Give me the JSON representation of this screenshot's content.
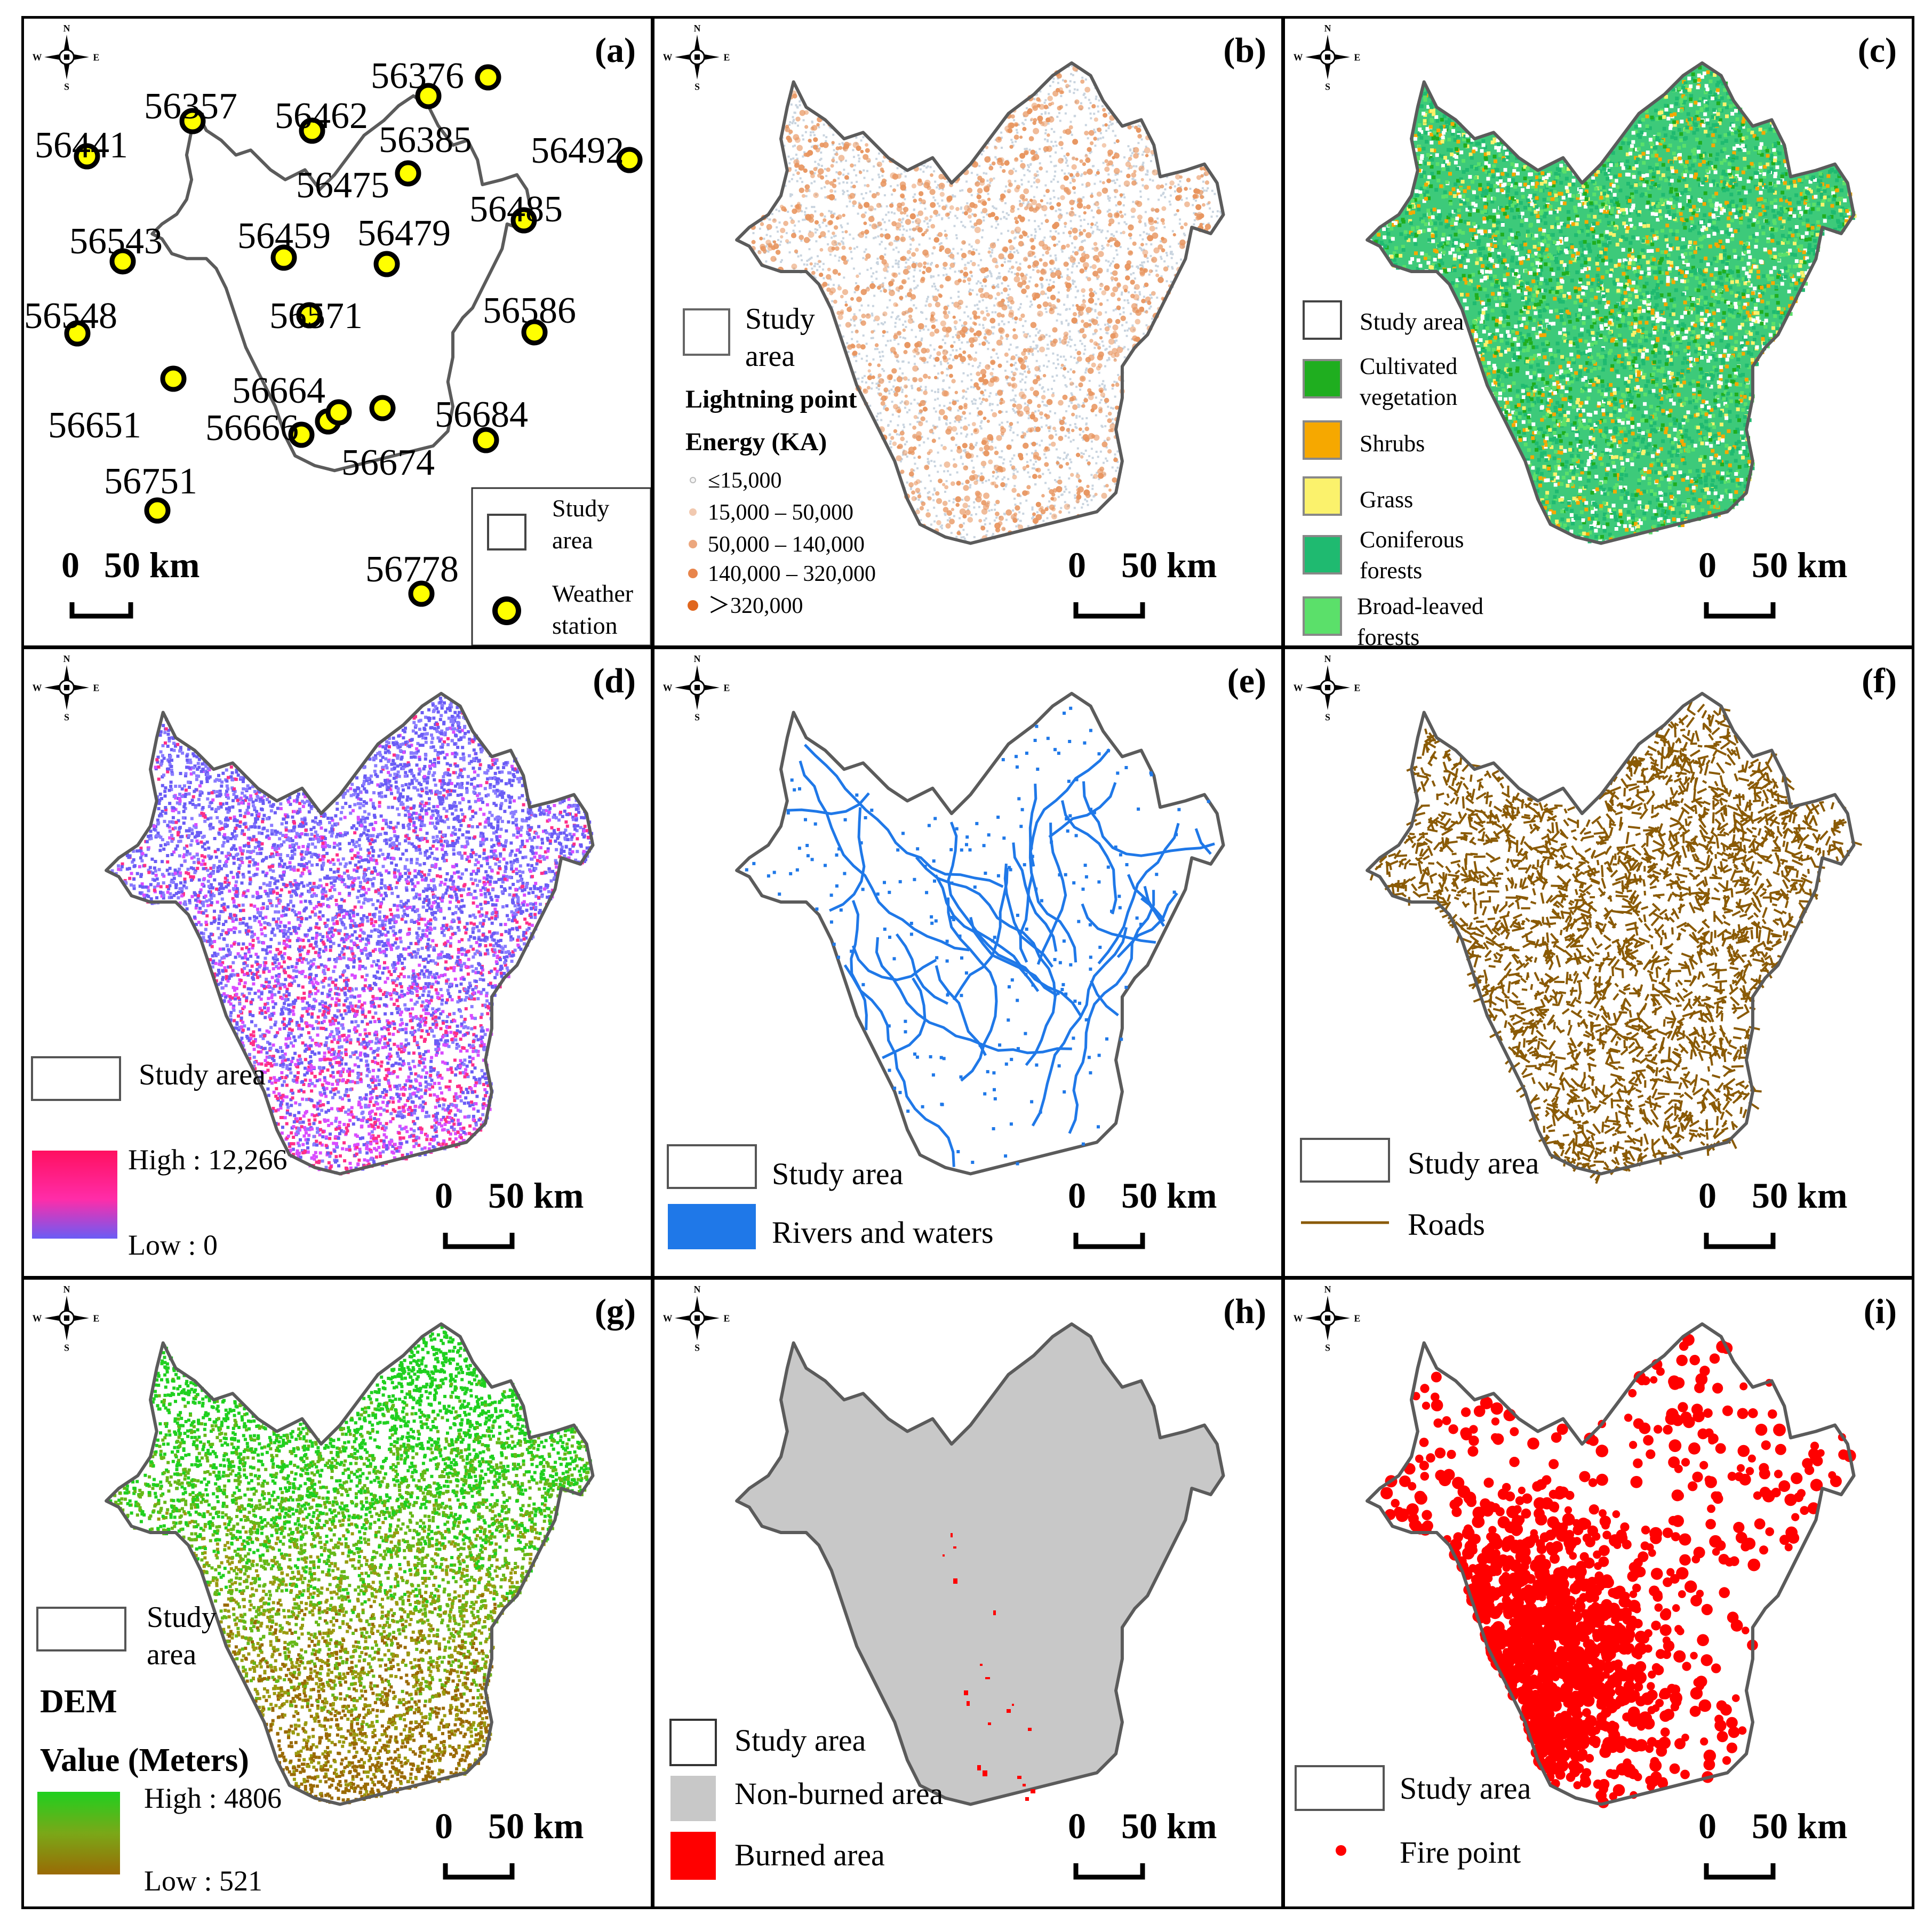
{
  "compass": {
    "n": "N",
    "s": "S",
    "e": "E",
    "w": "W"
  },
  "scalebar": {
    "zero": "0",
    "label": "50 km"
  },
  "colors": {
    "outline": "#5b5b5b",
    "lightning": "#e8955f",
    "lightning_bg": "#c9d4df",
    "cultivated": "#1fae1f",
    "shrubs": "#f6a800",
    "grass": "#fbf26c",
    "coniferous": "#1fba70",
    "broadleaved": "#5be06a",
    "ndvi_low": "#6a5cf5",
    "ndvi_high": "#ff1060",
    "rivers": "#1f78e8",
    "roads": "#8a5a05",
    "dem_high": "#1fd01f",
    "dem_low": "#9a6a05",
    "nonburned": "#c8c8c8",
    "burned": "#ff0000",
    "fire": "#ff0000",
    "station_fill": "#ffff00"
  },
  "panels": {
    "a": {
      "label": "(a)",
      "legend": {
        "study_area": [
          "Study",
          "area"
        ],
        "station": [
          "Weather",
          "station"
        ]
      },
      "stations": [
        {
          "id": "56376"
        },
        {
          "id": "56357"
        },
        {
          "id": "56462"
        },
        {
          "id": "56385"
        },
        {
          "id": "56441"
        },
        {
          "id": "56492"
        },
        {
          "id": "56475"
        },
        {
          "id": "56485"
        },
        {
          "id": "56543"
        },
        {
          "id": "56459"
        },
        {
          "id": "56479"
        },
        {
          "id": "56548"
        },
        {
          "id": "56571"
        },
        {
          "id": "56586"
        },
        {
          "id": "56664"
        },
        {
          "id": "56651"
        },
        {
          "id": "56666"
        },
        {
          "id": "56684"
        },
        {
          "id": "56674"
        },
        {
          "id": "56751"
        },
        {
          "id": "56778"
        }
      ]
    },
    "b": {
      "label": "(b)",
      "legend": {
        "study_area": [
          "Study",
          "area"
        ],
        "title1": "Lightning point",
        "title2": "Energy (KA)",
        "classes": [
          "≤15,000",
          "15,000 – 50,000",
          "50,000 – 140,000",
          "140,000 – 320,000",
          "＞320,000"
        ]
      }
    },
    "c": {
      "label": "(c)",
      "legend": {
        "study_area": "Study area",
        "classes": [
          [
            "Cultivated",
            "vegetation"
          ],
          [
            "Shrubs"
          ],
          [
            "Grass"
          ],
          [
            "Coniferous",
            " forests"
          ],
          [
            "Broad-leaved",
            "forests"
          ]
        ]
      }
    },
    "d": {
      "label": "(d)",
      "legend": {
        "study_area": "Study area",
        "high": "High : 12,266",
        "low": "Low : 0"
      }
    },
    "e": {
      "label": "(e)",
      "legend": {
        "study_area": "Study area",
        "rivers": "Rivers and waters"
      }
    },
    "f": {
      "label": "(f)",
      "legend": {
        "study_area": "Study area",
        "roads": "Roads"
      }
    },
    "g": {
      "label": "(g)",
      "legend": {
        "study_area": [
          "Study",
          "area"
        ],
        "title1": "DEM",
        "title2": "Value (Meters)",
        "high": "High : 4806",
        "low": "Low : 521"
      }
    },
    "h": {
      "label": "(h)",
      "legend": {
        "study_area": "Study area",
        "nonburned": "Non-burned area",
        "burned": "Burned area"
      }
    },
    "i": {
      "label": "(i)",
      "legend": {
        "study_area": "Study area",
        "fire": "Fire point"
      }
    }
  }
}
